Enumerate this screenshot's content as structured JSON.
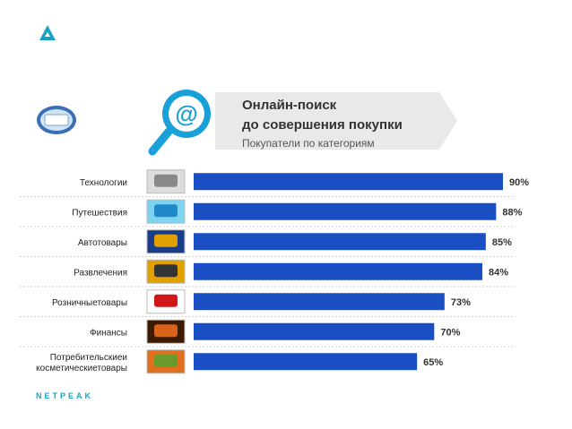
{
  "brand": {
    "name": "NETPEAK",
    "accent": "#1aa3c6"
  },
  "header": {
    "title_line1": "Онлайн-поиск",
    "title_line2": "до совершения покупки",
    "subtitle": "Покупатели по категориям",
    "icon": "magnifier-at-icon"
  },
  "chart_data": {
    "type": "bar",
    "orientation": "horizontal",
    "categories": [
      "Технологии",
      "Путешествия",
      "Автотовары",
      "Развлечения",
      "Розничныетовары",
      "Финансы",
      "Потребительские и косметическиетовары"
    ],
    "values": [
      90,
      88,
      85,
      84,
      73,
      70,
      65
    ],
    "value_labels": [
      "90%",
      "88%",
      "85%",
      "84%",
      "73%",
      "70%",
      "65%"
    ],
    "category_icons": [
      "computer-icon",
      "beach-icon",
      "car-icon",
      "entertainment-icon",
      "shopping-cart-icon",
      "money-fire-icon",
      "cosmetics-basket-icon"
    ],
    "xlim": [
      0,
      100
    ],
    "bar_color": "#1a4fc4",
    "grid": false
  }
}
